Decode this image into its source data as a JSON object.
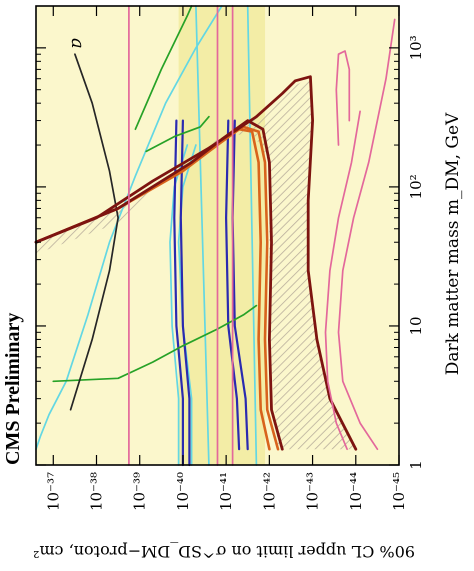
{
  "chart_data": {
    "type": "line",
    "orientation": "rotated-90",
    "panel_label": "a",
    "watermark": "CMS Preliminary",
    "xlabel": "90% CL upper limit on σ^SD_DM−proton, cm²",
    "ylabel": "Dark matter mass m_DM, GeV",
    "x_scale": "log-reversed",
    "y_scale": "log",
    "x_tick_labels": [
      "10⁻³⁷",
      "10⁻³⁸",
      "10⁻³⁹",
      "10⁻⁴⁰",
      "10⁻⁴¹",
      "10⁻⁴²",
      "10⁻⁴³",
      "10⁻⁴⁴",
      "10⁻⁴⁵"
    ],
    "y_tick_labels": [
      "1",
      "10",
      "10²",
      "10³"
    ],
    "xlim": [
      -36.6,
      -45
    ],
    "ylim": [
      1,
      2000
    ],
    "colors": {
      "background_fill": "#fbf7cc",
      "band_fill": "#f3eda6",
      "cyan": "#63d7e3",
      "blue": "#2a2ab0",
      "green": "#27a227",
      "black": "#262626",
      "orange": "#d8631c",
      "dark_red": "#7d1410",
      "pink": "#e3689b",
      "hatch": "#b9ae9c"
    },
    "series": [
      {
        "key": "cyan_a",
        "style": "cyan",
        "points": [
          [
            -36.6,
            1.3
          ],
          [
            -36.7,
            1.6
          ],
          [
            -36.9,
            2.3
          ],
          [
            -37.3,
            4.0
          ],
          [
            -37.8,
            12
          ],
          [
            -38.3,
            40
          ],
          [
            -38.9,
            120
          ],
          [
            -39.6,
            400
          ],
          [
            -40.3,
            1000
          ],
          [
            -40.9,
            2000
          ]
        ]
      },
      {
        "key": "cyan_b",
        "style": "cyan",
        "points": [
          [
            -39.9,
            1
          ],
          [
            -39.9,
            3
          ],
          [
            -39.75,
            10
          ],
          [
            -39.7,
            40
          ],
          [
            -39.8,
            100
          ],
          [
            -40.1,
            200
          ]
        ]
      },
      {
        "key": "cyan_c",
        "style": "cyan",
        "points": [
          [
            -40.2,
            1
          ],
          [
            -40.2,
            3
          ],
          [
            -40.0,
            10
          ],
          [
            -39.9,
            40
          ],
          [
            -40.0,
            100
          ],
          [
            -40.3,
            200
          ]
        ]
      },
      {
        "key": "cyan_d",
        "style": "cyan",
        "points": [
          [
            -40.6,
            1
          ],
          [
            -40.3,
            2000
          ]
        ]
      },
      {
        "key": "cyan_e",
        "style": "cyan",
        "points": [
          [
            -41.7,
            1
          ],
          [
            -41.5,
            2000
          ]
        ]
      },
      {
        "key": "blue_a",
        "style": "blue",
        "points": [
          [
            -40.0,
            1
          ],
          [
            -40.0,
            3
          ],
          [
            -39.85,
            10
          ],
          [
            -39.8,
            60
          ],
          [
            -39.85,
            300
          ]
        ]
      },
      {
        "key": "blue_b",
        "style": "blue",
        "points": [
          [
            -40.15,
            1
          ],
          [
            -40.15,
            3
          ],
          [
            -40.0,
            10
          ],
          [
            -39.95,
            60
          ],
          [
            -40.0,
            300
          ]
        ]
      },
      {
        "key": "blue_c",
        "style": "blue",
        "points": [
          [
            -41.3,
            1.3
          ],
          [
            -41.25,
            3
          ],
          [
            -41.05,
            10
          ],
          [
            -41.0,
            60
          ],
          [
            -41.05,
            300
          ]
        ]
      },
      {
        "key": "blue_d",
        "style": "blue",
        "points": [
          [
            -41.5,
            1.3
          ],
          [
            -41.45,
            3
          ],
          [
            -41.2,
            10
          ],
          [
            -41.15,
            60
          ],
          [
            -41.2,
            300
          ]
        ]
      },
      {
        "key": "green_a",
        "style": "green",
        "points": [
          [
            -37.0,
            4
          ],
          [
            -38.5,
            4.2
          ],
          [
            -39.3,
            5.5
          ],
          [
            -40.0,
            7.2
          ],
          [
            -40.8,
            9.5
          ],
          [
            -41.4,
            12
          ],
          [
            -41.7,
            14
          ]
        ]
      },
      {
        "key": "green_b",
        "style": "green",
        "points": [
          [
            -39.15,
            180
          ],
          [
            -39.8,
            230
          ],
          [
            -40.4,
            270
          ],
          [
            -40.6,
            320
          ]
        ]
      },
      {
        "key": "green_c",
        "style": "green",
        "points": [
          [
            -38.9,
            260
          ],
          [
            -39.5,
            700
          ],
          [
            -40.1,
            1700
          ],
          [
            -40.2,
            2000
          ]
        ]
      },
      {
        "key": "black_a",
        "style": "black",
        "points": [
          [
            -37.4,
            2.5
          ],
          [
            -37.9,
            8
          ],
          [
            -38.3,
            25
          ],
          [
            -38.5,
            60
          ],
          [
            -38.3,
            130
          ],
          [
            -37.9,
            400
          ],
          [
            -37.5,
            900
          ]
        ]
      },
      {
        "key": "orange_a",
        "style": "orange",
        "points": [
          [
            -36.6,
            40
          ],
          [
            -38.5,
            70
          ],
          [
            -40.0,
            130
          ],
          [
            -40.8,
            200
          ],
          [
            -41.3,
            260
          ],
          [
            -41.6,
            250
          ],
          [
            -41.75,
            150
          ],
          [
            -41.8,
            40
          ],
          [
            -41.75,
            8
          ],
          [
            -41.8,
            2.5
          ],
          [
            -42.0,
            1.3
          ]
        ]
      },
      {
        "key": "orange_b",
        "style": "orange",
        "points": [
          [
            -36.6,
            40
          ],
          [
            -38.5,
            70
          ],
          [
            -40.1,
            140
          ],
          [
            -40.8,
            210
          ],
          [
            -41.4,
            270
          ],
          [
            -41.75,
            250
          ],
          [
            -41.9,
            150
          ],
          [
            -41.95,
            40
          ],
          [
            -41.9,
            8
          ],
          [
            -41.95,
            2.5
          ],
          [
            -42.2,
            1.3
          ]
        ]
      },
      {
        "key": "darkred_a",
        "style": "dark_red",
        "points": [
          [
            -36.6,
            40
          ],
          [
            -38.5,
            70
          ],
          [
            -40.2,
            150
          ],
          [
            -40.9,
            220
          ],
          [
            -41.5,
            300
          ],
          [
            -41.85,
            260
          ],
          [
            -42.0,
            150
          ],
          [
            -42.05,
            40
          ],
          [
            -42.0,
            8
          ],
          [
            -42.05,
            2.5
          ],
          [
            -42.3,
            1.3
          ]
        ]
      },
      {
        "key": "darkred_b",
        "style": "dark_red",
        "points": [
          [
            -36.6,
            40
          ],
          [
            -38.0,
            60
          ],
          [
            -39.3,
            110
          ],
          [
            -40.6,
            190
          ],
          [
            -41.7,
            320
          ],
          [
            -42.3,
            470
          ],
          [
            -42.6,
            580
          ],
          [
            -42.95,
            620
          ],
          [
            -43.0,
            300
          ],
          [
            -42.9,
            80
          ],
          [
            -42.9,
            25
          ],
          [
            -43.1,
            8
          ],
          [
            -43.4,
            3
          ],
          [
            -44.0,
            1.3
          ]
        ]
      },
      {
        "key": "pink_a",
        "style": "pink",
        "points": [
          [
            -38.75,
            1
          ],
          [
            -38.75,
            2000
          ]
        ]
      },
      {
        "key": "pink_b",
        "style": "pink",
        "points": [
          [
            -40.8,
            1
          ],
          [
            -40.8,
            2000
          ]
        ]
      },
      {
        "key": "pink_c",
        "style": "pink",
        "points": [
          [
            -41.15,
            1
          ],
          [
            -41.15,
            2000
          ]
        ]
      },
      {
        "key": "pink_d",
        "style": "pink",
        "points": [
          [
            -44.5,
            1.3
          ],
          [
            -44.1,
            2
          ],
          [
            -43.7,
            4
          ],
          [
            -43.6,
            9
          ],
          [
            -43.7,
            25
          ],
          [
            -43.95,
            60
          ],
          [
            -44.3,
            150
          ],
          [
            -44.7,
            600
          ],
          [
            -44.9,
            1600
          ]
        ]
      },
      {
        "key": "pink_e",
        "style": "pink",
        "points": [
          [
            -43.8,
            1.3
          ],
          [
            -43.55,
            2
          ],
          [
            -43.35,
            4
          ],
          [
            -43.3,
            9
          ],
          [
            -43.4,
            25
          ],
          [
            -43.6,
            60
          ],
          [
            -43.9,
            150
          ],
          [
            -44.1,
            350
          ]
        ]
      },
      {
        "key": "pink_f",
        "style": "pink",
        "points": [
          [
            -43.6,
            200
          ],
          [
            -43.55,
            500
          ],
          [
            -43.6,
            900
          ],
          [
            -43.75,
            950
          ],
          [
            -43.85,
            700
          ],
          [
            -43.85,
            300
          ]
        ]
      }
    ]
  }
}
